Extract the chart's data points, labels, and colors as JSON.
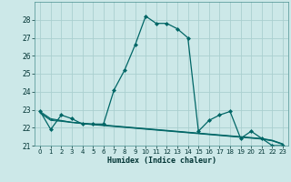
{
  "xlabel": "Humidex (Indice chaleur)",
  "bg_color": "#cce8e8",
  "grid_color": "#aacfcf",
  "line_color": "#006666",
  "xlim": [
    -0.5,
    23.5
  ],
  "ylim": [
    21,
    29
  ],
  "yticks": [
    21,
    22,
    23,
    24,
    25,
    26,
    27,
    28
  ],
  "xticks": [
    0,
    1,
    2,
    3,
    4,
    5,
    6,
    7,
    8,
    9,
    10,
    11,
    12,
    13,
    14,
    15,
    16,
    17,
    18,
    19,
    20,
    21,
    22,
    23
  ],
  "series": [
    {
      "x": [
        0,
        1,
        2,
        3,
        4,
        5,
        6,
        7,
        8,
        9,
        10,
        11,
        12,
        13,
        14,
        15,
        16,
        17,
        18,
        19,
        20,
        21,
        22,
        23
      ],
      "y": [
        22.9,
        21.9,
        22.7,
        22.5,
        22.2,
        22.2,
        22.2,
        24.1,
        25.2,
        26.6,
        28.2,
        27.8,
        27.8,
        27.5,
        27.0,
        21.8,
        22.4,
        22.7,
        22.9,
        21.4,
        21.8,
        21.4,
        21.0,
        21.0
      ],
      "marker": true
    },
    {
      "x": [
        0,
        1,
        2,
        3,
        4,
        5,
        6,
        7,
        8,
        9,
        10,
        11,
        12,
        13,
        14,
        15,
        16,
        17,
        18,
        19,
        20,
        21,
        22,
        23
      ],
      "y": [
        22.9,
        22.5,
        22.4,
        22.3,
        22.25,
        22.2,
        22.15,
        22.1,
        22.05,
        22.0,
        21.95,
        21.9,
        21.85,
        21.8,
        21.75,
        21.7,
        21.65,
        21.6,
        21.55,
        21.5,
        21.45,
        21.4,
        21.3,
        21.1
      ],
      "marker": false
    },
    {
      "x": [
        0,
        1,
        2,
        3,
        4,
        5,
        6,
        7,
        8,
        9,
        10,
        11,
        12,
        13,
        14,
        15,
        16,
        17,
        18,
        19,
        20,
        21,
        22,
        23
      ],
      "y": [
        22.85,
        22.45,
        22.38,
        22.3,
        22.24,
        22.18,
        22.13,
        22.08,
        22.03,
        21.98,
        21.93,
        21.88,
        21.83,
        21.78,
        21.73,
        21.68,
        21.63,
        21.58,
        21.53,
        21.48,
        21.43,
        21.38,
        21.28,
        21.08
      ],
      "marker": false
    },
    {
      "x": [
        0,
        1,
        2,
        3,
        4,
        5,
        6,
        7,
        8,
        9,
        10,
        11,
        12,
        13,
        14,
        15,
        16,
        17,
        18,
        19,
        20,
        21,
        22,
        23
      ],
      "y": [
        22.8,
        22.4,
        22.35,
        22.28,
        22.22,
        22.16,
        22.11,
        22.06,
        22.01,
        21.96,
        21.91,
        21.86,
        21.81,
        21.76,
        21.71,
        21.66,
        21.61,
        21.56,
        21.51,
        21.46,
        21.41,
        21.36,
        21.26,
        21.06
      ],
      "marker": false
    }
  ]
}
